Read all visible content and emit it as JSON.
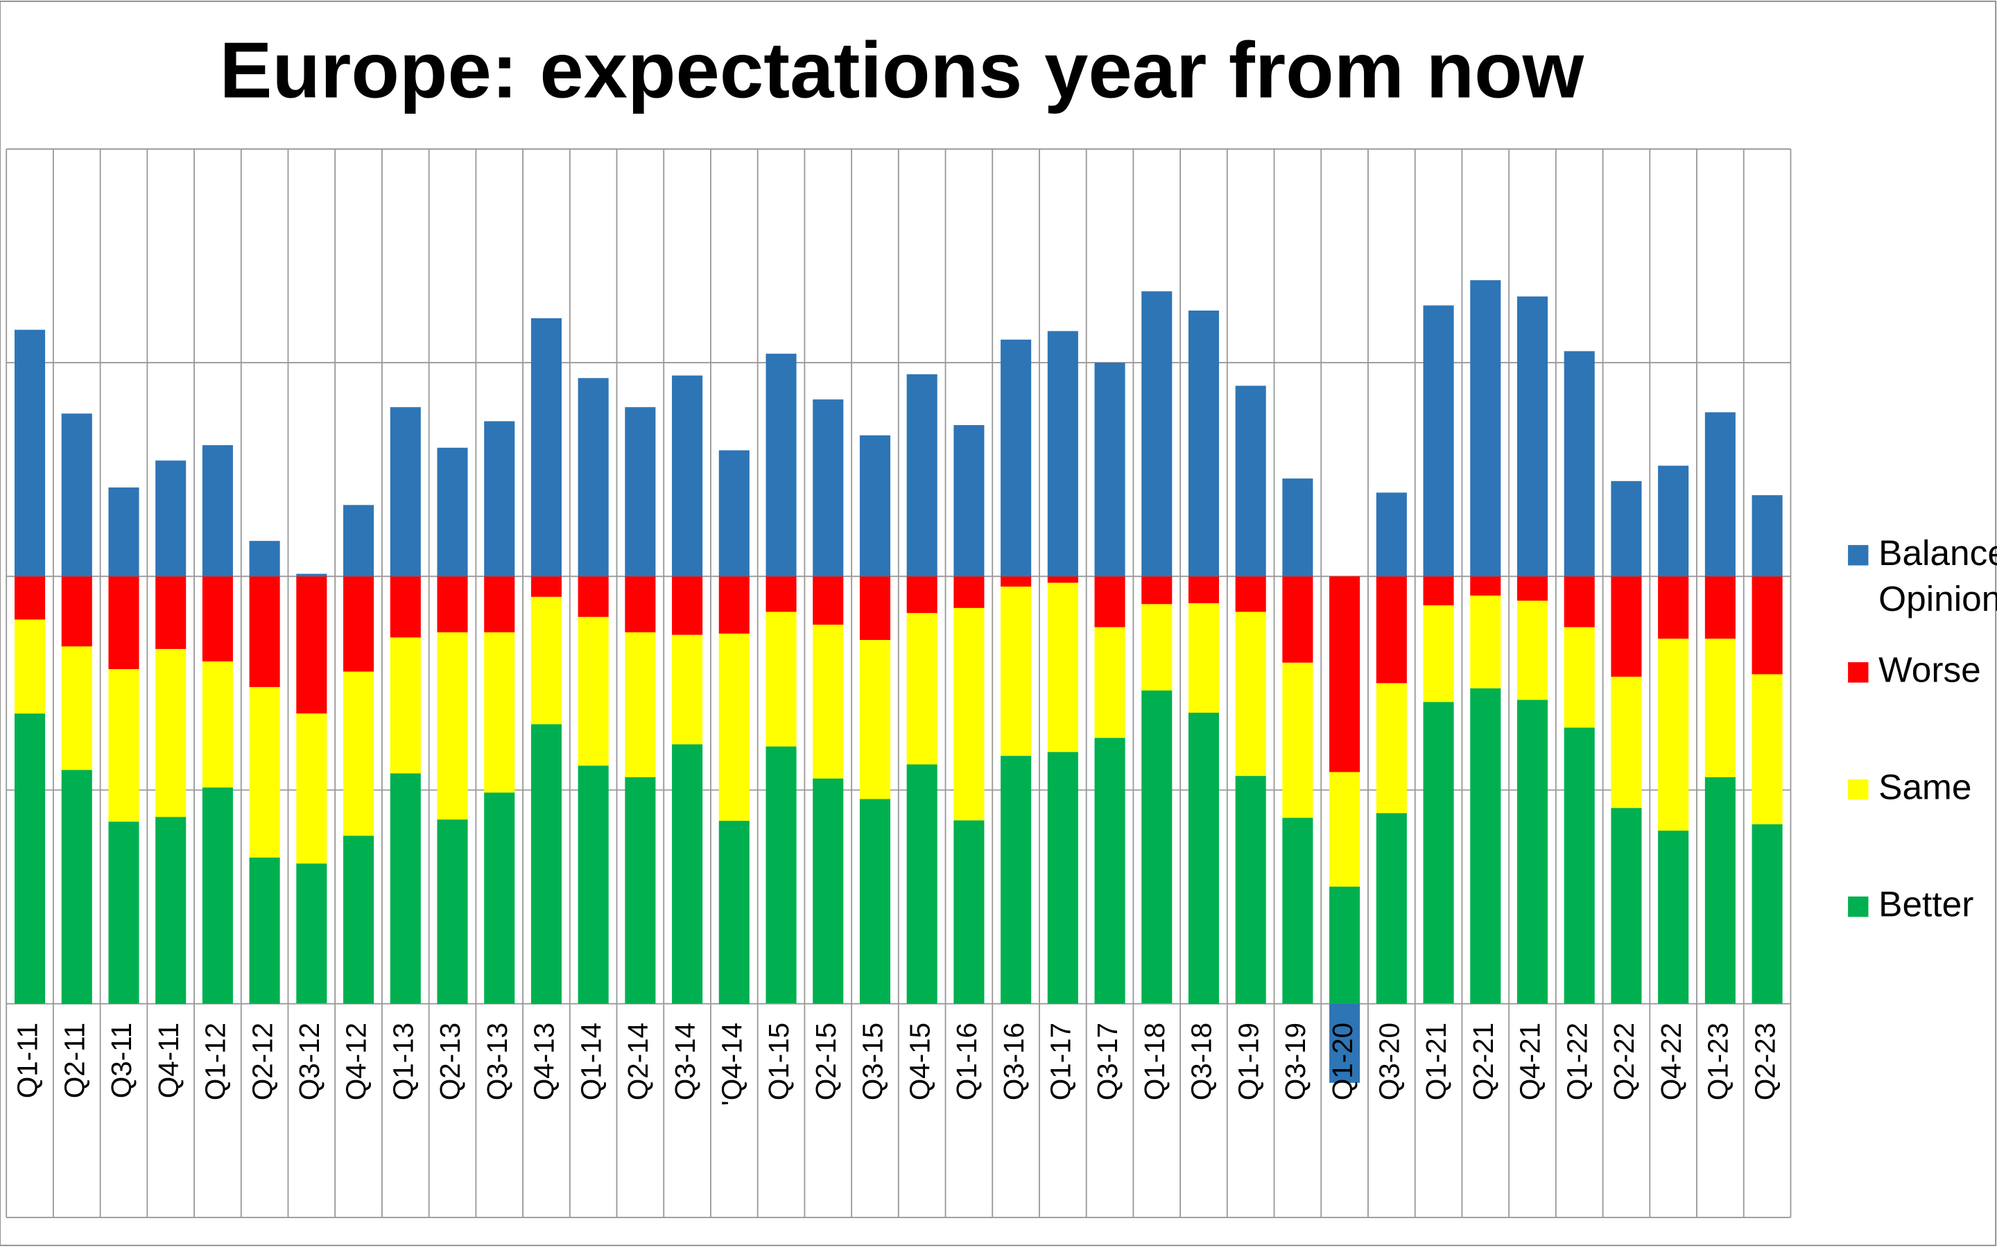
{
  "chart_data": {
    "type": "bar",
    "title": "Europe: expectations year from now",
    "categories": [
      "Q1-11",
      "Q2-11",
      "Q3-11",
      "Q4-11",
      "Q1-12",
      "Q2-12",
      "Q3-12",
      "Q4-12",
      "Q1-13",
      "Q2-13",
      "Q3-13",
      "Q4-13",
      "Q1-14",
      "Q2-14",
      "Q3-14",
      "'Q4-14",
      "Q1-15",
      "Q2-15",
      "Q3-15",
      "Q4-15",
      "Q1-16",
      "Q3-16",
      "Q1-17",
      "Q3-17",
      "Q1-18",
      "Q3-18",
      "Q1-19",
      "Q3-19",
      "Q1-20",
      "Q3-20",
      "Q1-21",
      "Q2-21",
      "Q4-21",
      "Q1-22",
      "Q2-22",
      "Q4-22",
      "Q1-23",
      "Q2-23"
    ],
    "series": [
      {
        "name": "Balance Opinion",
        "color": "#2e75b6",
        "values": [
          57.7,
          38.1,
          20.8,
          27.1,
          30.7,
          8.3,
          0.6,
          16.7,
          39.6,
          30.1,
          36.3,
          60.4,
          46.4,
          39.6,
          47.0,
          29.5,
          52.1,
          41.4,
          33.0,
          47.3,
          35.4,
          55.4,
          57.4,
          50.0,
          66.7,
          62.2,
          44.6,
          22.9,
          -18.5,
          19.6,
          63.4,
          69.3,
          65.5,
          52.7,
          22.3,
          25.9,
          38.4,
          19.0
        ]
      },
      {
        "name": "Worse",
        "color": "#ff0000",
        "values": [
          10.1,
          16.4,
          21.7,
          17.0,
          19.9,
          25.9,
          32.1,
          22.3,
          14.3,
          13.1,
          13.1,
          4.8,
          9.5,
          13.1,
          13.7,
          13.4,
          8.3,
          11.3,
          14.9,
          8.6,
          7.4,
          2.4,
          1.5,
          11.9,
          6.5,
          6.3,
          8.3,
          20.2,
          45.8,
          25.0,
          6.8,
          4.5,
          5.7,
          11.9,
          23.5,
          14.6,
          14.6,
          22.9
        ]
      },
      {
        "name": "Same",
        "color": "#ffff00",
        "values": [
          22.0,
          28.9,
          35.7,
          39.3,
          29.5,
          39.9,
          35.1,
          38.4,
          31.8,
          43.8,
          37.5,
          29.8,
          34.8,
          33.9,
          25.6,
          43.8,
          31.5,
          36.0,
          37.2,
          35.4,
          49.7,
          39.6,
          39.6,
          25.9,
          20.2,
          25.6,
          38.4,
          36.3,
          26.8,
          30.4,
          22.6,
          21.7,
          23.2,
          23.5,
          30.7,
          44.9,
          32.4,
          35.1
        ]
      },
      {
        "name": "Better",
        "color": "#00b050",
        "values": [
          67.9,
          54.8,
          42.6,
          43.8,
          50.6,
          34.2,
          32.7,
          39.3,
          53.9,
          43.2,
          49.4,
          65.5,
          55.7,
          53.0,
          60.7,
          42.9,
          60.1,
          52.7,
          47.9,
          56.0,
          42.9,
          58.0,
          58.9,
          62.2,
          73.2,
          68.2,
          53.3,
          43.5,
          27.4,
          44.6,
          70.5,
          73.8,
          71.1,
          64.6,
          45.8,
          40.5,
          53.0,
          42.0
        ]
      }
    ],
    "ylim": [
      -150,
      100
    ],
    "yticks": [
      -150,
      -100,
      -50,
      0,
      50,
      100
    ],
    "grid": true
  }
}
